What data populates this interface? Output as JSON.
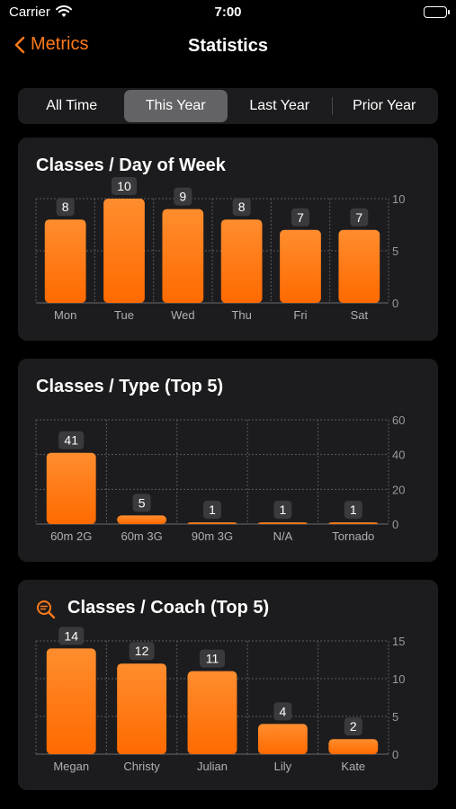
{
  "status_bar": {
    "carrier": "Carrier",
    "time": "7:00"
  },
  "nav": {
    "back_label": "Metrics",
    "title": "Statistics"
  },
  "segments": [
    {
      "label": "All Time",
      "active": false
    },
    {
      "label": "This Year",
      "active": true
    },
    {
      "label": "Last Year",
      "active": false
    },
    {
      "label": "Prior Year",
      "active": false
    }
  ],
  "colors": {
    "accent": "#ff7a1a",
    "bar_top": "#ff8d2e",
    "bar_bottom": "#ff6a00"
  },
  "chart_data": [
    {
      "type": "bar",
      "title": "Classes / Day of Week",
      "categories": [
        "Mon",
        "Tue",
        "Wed",
        "Thu",
        "Fri",
        "Sat"
      ],
      "values": [
        8,
        10,
        9,
        8,
        7,
        7
      ],
      "ylim": [
        0,
        10
      ],
      "yticks": [
        0,
        5,
        10
      ],
      "xlabel": "",
      "ylabel": "",
      "grid": true
    },
    {
      "type": "bar",
      "title": "Classes / Type (Top 5)",
      "categories": [
        "60m 2G",
        "60m 3G",
        "90m 3G",
        "N/A",
        "Tornado"
      ],
      "values": [
        41,
        5,
        1,
        1,
        1
      ],
      "ylim": [
        0,
        60
      ],
      "yticks": [
        0,
        20,
        40,
        60
      ],
      "xlabel": "",
      "ylabel": "",
      "grid": true
    },
    {
      "type": "bar",
      "title": "Classes / Coach (Top 5)",
      "title_icon": "search-chart-icon",
      "categories": [
        "Megan",
        "Christy",
        "Julian",
        "Lily",
        "Kate"
      ],
      "values": [
        14,
        12,
        11,
        4,
        2
      ],
      "ylim": [
        0,
        15
      ],
      "yticks": [
        0,
        5,
        10,
        15
      ],
      "xlabel": "",
      "ylabel": "",
      "grid": true
    }
  ]
}
